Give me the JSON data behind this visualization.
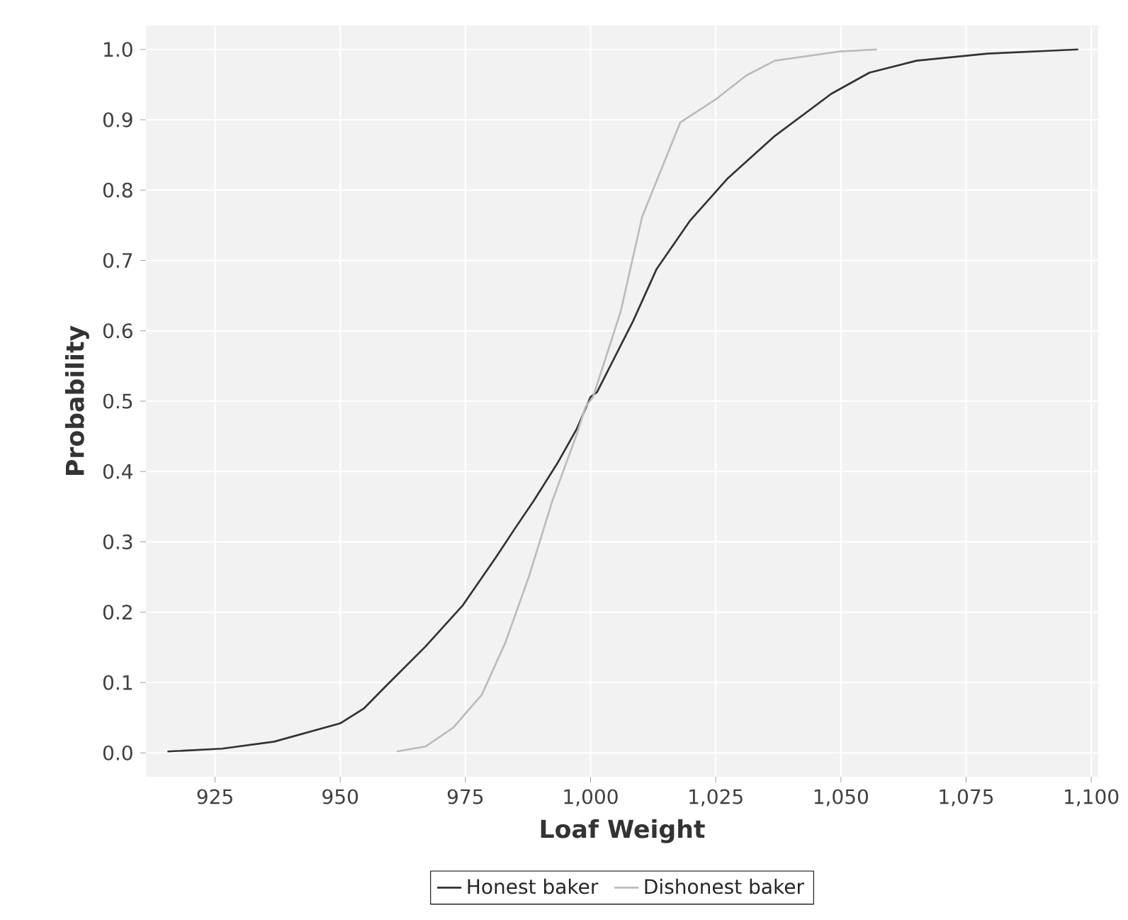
{
  "chart_data": {
    "type": "line",
    "xlabel": "Loaf Weight",
    "ylabel": "Probability",
    "xlim": [
      911.2,
      1101.4
    ],
    "ylim": [
      -0.034,
      1.034
    ],
    "xticks": [
      925,
      950,
      975,
      {
        "value": 1000,
        "label": "1,000"
      },
      {
        "value": 1025,
        "label": "1,025"
      },
      {
        "value": 1050,
        "label": "1,050"
      },
      {
        "value": 1075,
        "label": "1,075"
      },
      {
        "value": 1100,
        "label": "1,100"
      }
    ],
    "yticks": [
      {
        "value": 0,
        "label": "0.0"
      },
      0.1,
      0.2,
      0.3,
      0.4,
      0.5,
      0.6,
      0.7,
      0.8,
      0.9,
      {
        "value": 1,
        "label": "1.0"
      }
    ],
    "grid": true,
    "legend": "bottom",
    "marker": "none",
    "line_style": "solid",
    "series": [
      {
        "name": "Honest baker",
        "color": "#333333",
        "x": [
          915.5,
          926.4,
          936.8,
          950,
          954.7,
          959.4,
          967,
          974.5,
          981.1,
          984.9,
          988.7,
          993.4,
          997.2,
          1000,
          1001.3,
          1008.5,
          1013.2,
          1019.8,
          1027.3,
          1036.8,
          1048.1,
          1055.7,
          1065.1,
          1079.3,
          1097.4
        ],
        "values": [
          0.002,
          0.006,
          0.016,
          0.042,
          0.063,
          0.097,
          0.151,
          0.21,
          0.278,
          0.319,
          0.359,
          0.412,
          0.46,
          0.506,
          0.513,
          0.614,
          0.688,
          0.756,
          0.816,
          0.877,
          0.937,
          0.967,
          0.984,
          0.994,
          1.0
        ]
      },
      {
        "name": "Dishonest baker",
        "color": "#bbbbbb",
        "x": [
          961.3,
          967,
          972.6,
          978.3,
          983,
          987.7,
          992.4,
          997.2,
          999,
          1000.5,
          1006,
          1010.3,
          1017.9,
          1025,
          1031.1,
          1036.8,
          1049.6,
          1057.2
        ],
        "values": [
          0.002,
          0.009,
          0.036,
          0.083,
          0.157,
          0.251,
          0.359,
          0.452,
          0.492,
          0.506,
          0.627,
          0.762,
          0.896,
          0.929,
          0.963,
          0.984,
          0.997,
          1.0
        ]
      }
    ]
  }
}
